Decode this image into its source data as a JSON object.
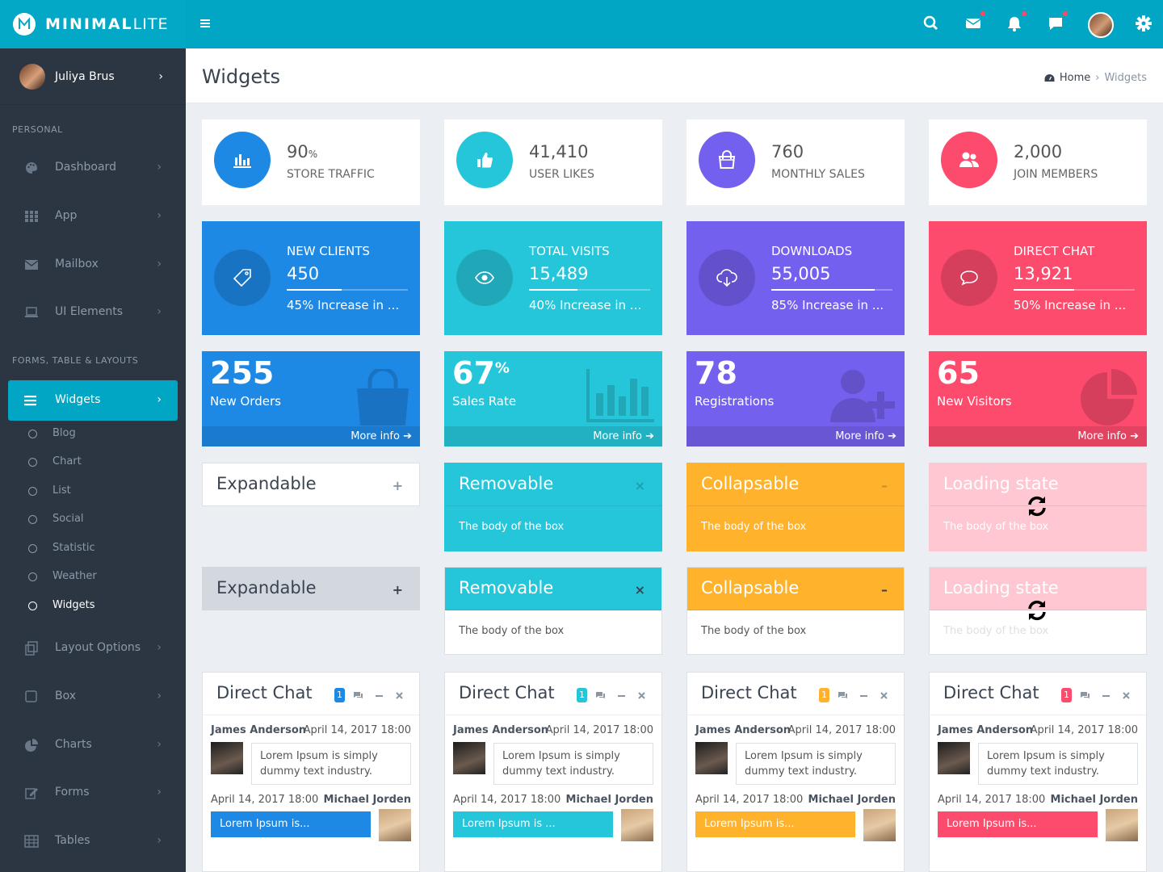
{
  "app": {
    "name_bold": "MINIMAL",
    "name_light": "LITE"
  },
  "colors": {
    "teal": "#00a6c3",
    "blue": "#1e88e5",
    "cyan": "#26c6da",
    "purple": "#7460ee",
    "red": "#fc4b6c",
    "amber": "#ffb22b",
    "sidebar": "#2c3643"
  },
  "user": {
    "name": "Juliya Brus"
  },
  "sidebar": {
    "section_personal": "PERSONAL",
    "section_forms": "FORMS, TABLE & LAYOUTS",
    "personal_items": [
      {
        "label": "Dashboard",
        "icon": "palette-icon"
      },
      {
        "label": "App",
        "icon": "grid-icon"
      },
      {
        "label": "Mailbox",
        "icon": "envelope-icon"
      },
      {
        "label": "UI Elements",
        "icon": "laptop-icon"
      }
    ],
    "active_item": {
      "label": "Widgets",
      "icon": "bars-icon"
    },
    "sub_items": [
      "Blog",
      "Chart",
      "List",
      "Social",
      "Statistic",
      "Weather",
      "Widgets"
    ],
    "other_items": [
      {
        "label": "Layout Options",
        "icon": "copy-icon"
      },
      {
        "label": "Box",
        "icon": "square-icon"
      },
      {
        "label": "Charts",
        "icon": "pie-chart-icon"
      },
      {
        "label": "Forms",
        "icon": "edit-icon"
      },
      {
        "label": "Tables",
        "icon": "table-icon"
      }
    ]
  },
  "header": {
    "title": "Widgets",
    "breadcrumb_home": "Home",
    "breadcrumb_current": "Widgets"
  },
  "stat_cards": [
    {
      "value": "90",
      "unit": "%",
      "label": "STORE TRAFFIC",
      "icon": "bar-chart-icon",
      "color": "#1e88e5"
    },
    {
      "value": "41,410",
      "unit": "",
      "label": "USER LIKES",
      "icon": "thumbs-up-icon",
      "color": "#26c6da"
    },
    {
      "value": "760",
      "unit": "",
      "label": "MONTHLY SALES",
      "icon": "shopping-bag-icon",
      "color": "#7460ee"
    },
    {
      "value": "2,000",
      "unit": "",
      "label": "JOIN MEMBERS",
      "icon": "users-icon",
      "color": "#fc4b6c"
    }
  ],
  "progress_cards": [
    {
      "title": "NEW CLIENTS",
      "value": "450",
      "desc": "45% Increase in ...",
      "progress": 0.45,
      "icon": "tag-icon",
      "color": "#1e88e5"
    },
    {
      "title": "TOTAL VISITS",
      "value": "15,489",
      "desc": "40% Increase in ...",
      "progress": 0.4,
      "icon": "eye-icon",
      "color": "#26c6da"
    },
    {
      "title": "DOWNLOADS",
      "value": "55,005",
      "desc": "85% Increase in ...",
      "progress": 0.85,
      "icon": "cloud-download-icon",
      "color": "#7460ee"
    },
    {
      "title": "DIRECT CHAT",
      "value": "13,921",
      "desc": "50% Increase in ...",
      "progress": 0.5,
      "icon": "chat-bubble-icon",
      "color": "#fc4b6c"
    }
  ],
  "small_boxes": [
    {
      "value": "255",
      "unit": "",
      "label": "New Orders",
      "more": "More info",
      "icon": "shopping-bag-icon",
      "color": "#1e88e5"
    },
    {
      "value": "67",
      "unit": "%",
      "label": "Sales Rate",
      "more": "More info",
      "icon": "bar-chart-icon",
      "color": "#26c6da"
    },
    {
      "value": "78",
      "unit": "",
      "label": "Registrations",
      "more": "More info",
      "icon": "user-plus-icon",
      "color": "#7460ee"
    },
    {
      "value": "65",
      "unit": "",
      "label": "New Visitors",
      "more": "More info",
      "icon": "pie-chart-icon",
      "color": "#fc4b6c"
    }
  ],
  "boxes_row1": [
    {
      "title": "Expandable",
      "body": "",
      "tool": "+",
      "tool_name": "expand-button"
    },
    {
      "title": "Removable",
      "body": "The body of the box",
      "tool": "×",
      "tool_name": "remove-button"
    },
    {
      "title": "Collapsable",
      "body": "The body of the box",
      "tool": "–",
      "tool_name": "collapse-button"
    },
    {
      "title": "Loading state",
      "body": "The body of the box",
      "tool": "",
      "tool_name": ""
    }
  ],
  "boxes_row2": [
    {
      "title": "Expandable",
      "body": "",
      "tool": "+",
      "tool_name": "expand-button"
    },
    {
      "title": "Removable",
      "body": "The body of the box",
      "tool": "×",
      "tool_name": "remove-button"
    },
    {
      "title": "Collapsable",
      "body": "The body of the box",
      "tool": "–",
      "tool_name": "collapse-button"
    },
    {
      "title": "Loading state",
      "body": "The body of the box",
      "tool": "",
      "tool_name": ""
    }
  ],
  "chats": [
    {
      "title": "Direct Chat",
      "badge": "1",
      "color": "#1e88e5",
      "sender1": "James Anderson",
      "date1": "April 14, 2017 18:00",
      "msg1": "Lorem Ipsum is simply dummy text industry.",
      "sender2": "Michael Jorden",
      "date2": "April 14, 2017 18:00",
      "msg2": "Lorem Ipsum is..."
    },
    {
      "title": "Direct Chat",
      "badge": "1",
      "color": "#26c6da",
      "sender1": "James Anderson",
      "date1": "April 14, 2017 18:00",
      "msg1": "Lorem Ipsum is simply dummy text industry.",
      "sender2": "Michael Jorden",
      "date2": "April 14, 2017 18:00",
      "msg2": "Lorem Ipsum is ..."
    },
    {
      "title": "Direct Chat",
      "badge": "1",
      "color": "#ffb22b",
      "sender1": "James Anderson",
      "date1": "April 14, 2017 18:00",
      "msg1": "Lorem Ipsum is simply dummy text industry.",
      "sender2": "Michael Jorden",
      "date2": "April 14, 2017 18:00",
      "msg2": "Lorem Ipsum is..."
    },
    {
      "title": "Direct Chat",
      "badge": "1",
      "color": "#fc4b6c",
      "sender1": "James Anderson",
      "date1": "April 14, 2017 18:00",
      "msg1": "Lorem Ipsum is simply dummy text industry.",
      "sender2": "Michael Jorden",
      "date2": "April 14, 2017 18:00",
      "msg2": "Lorem Ipsum is..."
    }
  ]
}
